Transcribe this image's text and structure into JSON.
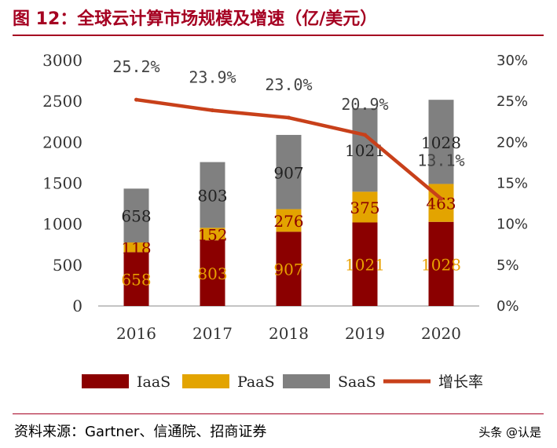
{
  "title": "图 12：全球云计算市场规模及增速（亿/美元）",
  "source": "资料来源：Gartner、信通院、招商证券",
  "watermark": "头条 @认是",
  "chart_data": {
    "type": "bar",
    "stacked": true,
    "categories": [
      "2016",
      "2017",
      "2018",
      "2019",
      "2020"
    ],
    "series": [
      {
        "name": "IaaS",
        "values": [
          658,
          803,
          907,
          1021,
          1028
        ],
        "color": "#8b0000",
        "label_color": "#e8a000"
      },
      {
        "name": "PaaS",
        "values": [
          118,
          152,
          276,
          375,
          463
        ],
        "color": "#e3a400",
        "label_color": "#8b0000"
      },
      {
        "name": "SaaS",
        "values": [
          658,
          803,
          907,
          1021,
          1028
        ],
        "color": "#808080",
        "label_color": "#222222"
      }
    ],
    "line_series": {
      "name": "增长率",
      "values": [
        25.2,
        23.9,
        23.0,
        20.9,
        13.1
      ],
      "labels": [
        "25.2%",
        "23.9%",
        "23.0%",
        "20.9%",
        "13.1%"
      ],
      "color": "#c8401a",
      "axis": "right"
    },
    "ylim": [
      0,
      3000
    ],
    "yticks": [
      "0",
      "500",
      "1000",
      "1500",
      "2000",
      "2500",
      "3000"
    ],
    "ylim_right": [
      0,
      30
    ],
    "yticks_right": [
      "0%",
      "5%",
      "10%",
      "15%",
      "20%",
      "25%",
      "30%"
    ],
    "legend_position": "bottom",
    "grid": false
  }
}
